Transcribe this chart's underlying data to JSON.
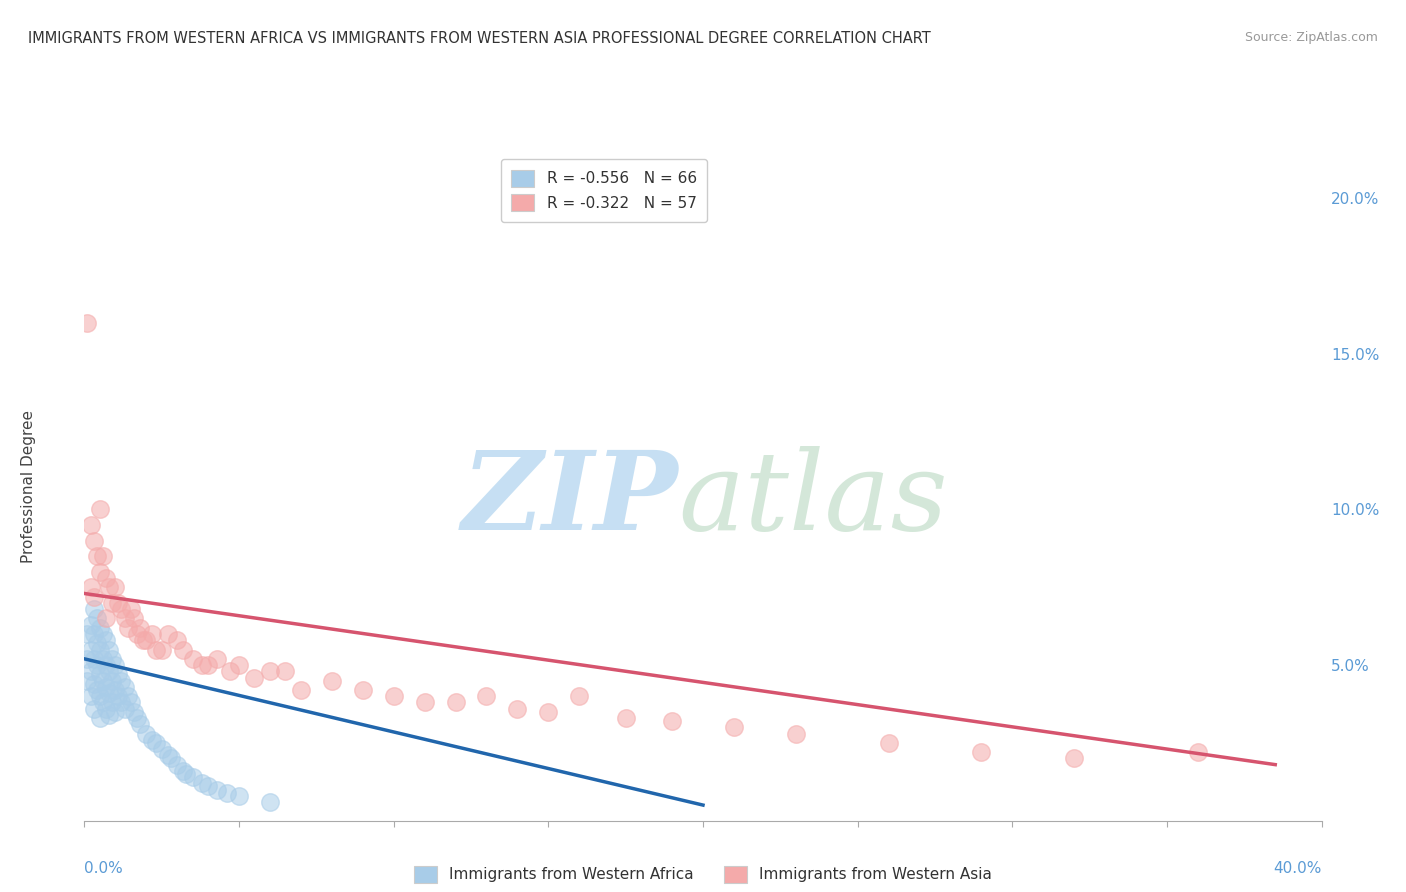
{
  "title": "IMMIGRANTS FROM WESTERN AFRICA VS IMMIGRANTS FROM WESTERN ASIA PROFESSIONAL DEGREE CORRELATION CHART",
  "source": "Source: ZipAtlas.com",
  "ylabel": "Professional Degree",
  "right_yticks": [
    0.0,
    0.05,
    0.1,
    0.15,
    0.2
  ],
  "right_ytick_labels": [
    "",
    "5.0%",
    "10.0%",
    "15.0%",
    "20.0%"
  ],
  "xlim": [
    0.0,
    0.4
  ],
  "ylim": [
    0.0,
    0.215
  ],
  "legend_top": [
    {
      "label": "R = -0.556   N = 66",
      "color": "#a8cce8"
    },
    {
      "label": "R = -0.322   N = 57",
      "color": "#f4aaaa"
    }
  ],
  "blue_scatter_x": [
    0.001,
    0.001,
    0.001,
    0.002,
    0.002,
    0.002,
    0.002,
    0.003,
    0.003,
    0.003,
    0.003,
    0.003,
    0.004,
    0.004,
    0.004,
    0.004,
    0.005,
    0.005,
    0.005,
    0.005,
    0.005,
    0.006,
    0.006,
    0.006,
    0.006,
    0.007,
    0.007,
    0.007,
    0.007,
    0.008,
    0.008,
    0.008,
    0.008,
    0.009,
    0.009,
    0.009,
    0.01,
    0.01,
    0.01,
    0.011,
    0.011,
    0.012,
    0.012,
    0.013,
    0.013,
    0.014,
    0.015,
    0.016,
    0.017,
    0.018,
    0.02,
    0.022,
    0.023,
    0.025,
    0.027,
    0.028,
    0.03,
    0.032,
    0.033,
    0.035,
    0.038,
    0.04,
    0.043,
    0.046,
    0.05,
    0.06
  ],
  "blue_scatter_y": [
    0.06,
    0.052,
    0.045,
    0.063,
    0.055,
    0.048,
    0.04,
    0.068,
    0.06,
    0.052,
    0.044,
    0.036,
    0.065,
    0.057,
    0.05,
    0.042,
    0.062,
    0.055,
    0.047,
    0.04,
    0.033,
    0.06,
    0.052,
    0.045,
    0.038,
    0.058,
    0.05,
    0.043,
    0.036,
    0.055,
    0.048,
    0.041,
    0.034,
    0.052,
    0.045,
    0.038,
    0.05,
    0.042,
    0.035,
    0.047,
    0.04,
    0.045,
    0.038,
    0.043,
    0.036,
    0.04,
    0.038,
    0.035,
    0.033,
    0.031,
    0.028,
    0.026,
    0.025,
    0.023,
    0.021,
    0.02,
    0.018,
    0.016,
    0.015,
    0.014,
    0.012,
    0.011,
    0.01,
    0.009,
    0.008,
    0.006
  ],
  "pink_scatter_x": [
    0.001,
    0.002,
    0.002,
    0.003,
    0.003,
    0.004,
    0.005,
    0.005,
    0.006,
    0.007,
    0.007,
    0.008,
    0.009,
    0.01,
    0.011,
    0.012,
    0.013,
    0.014,
    0.015,
    0.016,
    0.017,
    0.018,
    0.019,
    0.02,
    0.022,
    0.023,
    0.025,
    0.027,
    0.03,
    0.032,
    0.035,
    0.038,
    0.04,
    0.043,
    0.047,
    0.05,
    0.055,
    0.06,
    0.065,
    0.07,
    0.08,
    0.09,
    0.1,
    0.11,
    0.12,
    0.13,
    0.14,
    0.15,
    0.16,
    0.175,
    0.19,
    0.21,
    0.23,
    0.26,
    0.29,
    0.32,
    0.36
  ],
  "pink_scatter_y": [
    0.16,
    0.095,
    0.075,
    0.09,
    0.072,
    0.085,
    0.1,
    0.08,
    0.085,
    0.078,
    0.065,
    0.075,
    0.07,
    0.075,
    0.07,
    0.068,
    0.065,
    0.062,
    0.068,
    0.065,
    0.06,
    0.062,
    0.058,
    0.058,
    0.06,
    0.055,
    0.055,
    0.06,
    0.058,
    0.055,
    0.052,
    0.05,
    0.05,
    0.052,
    0.048,
    0.05,
    0.046,
    0.048,
    0.048,
    0.042,
    0.045,
    0.042,
    0.04,
    0.038,
    0.038,
    0.04,
    0.036,
    0.035,
    0.04,
    0.033,
    0.032,
    0.03,
    0.028,
    0.025,
    0.022,
    0.02,
    0.022
  ],
  "blue_line_x": [
    0.0,
    0.2
  ],
  "blue_line_y": [
    0.052,
    0.005
  ],
  "pink_line_x": [
    0.0,
    0.385
  ],
  "pink_line_y": [
    0.073,
    0.018
  ],
  "blue_color": "#a8cce8",
  "pink_color": "#f4aaaa",
  "blue_line_color": "#2166ac",
  "pink_line_color": "#d6546e",
  "background_color": "#ffffff",
  "grid_color": "#cccccc"
}
